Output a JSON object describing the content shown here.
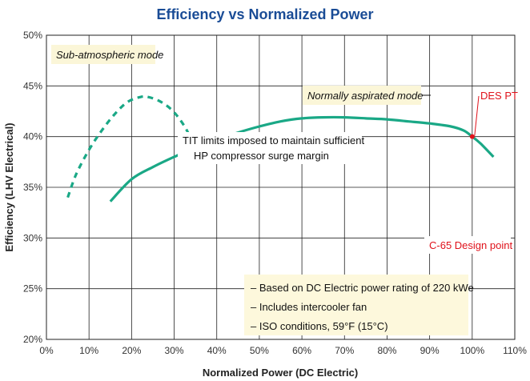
{
  "chart_data": {
    "type": "line",
    "title": "Efficiency vs Normalized Power",
    "xlabel": "Normalized Power (DC Electric)",
    "ylabel": "Efficiency (LHV Electrical)",
    "xlim": [
      0,
      110
    ],
    "ylim": [
      20,
      50
    ],
    "x_ticks": [
      0,
      10,
      20,
      30,
      40,
      50,
      60,
      70,
      80,
      90,
      100,
      110
    ],
    "x_tick_labels": [
      "0%",
      "10%",
      "20%",
      "30%",
      "40%",
      "50%",
      "60%",
      "70%",
      "80%",
      "90%",
      "100%",
      "110%"
    ],
    "y_ticks": [
      20,
      25,
      30,
      35,
      40,
      45,
      50
    ],
    "y_tick_labels": [
      "20%",
      "25%",
      "30%",
      "35%",
      "40%",
      "45%",
      "50%"
    ],
    "grid": true,
    "series": [
      {
        "name": "Sub-atmospheric mode",
        "style": "dashed",
        "color": "#1aa886",
        "x": [
          5,
          7,
          10,
          13,
          16,
          19,
          22,
          24,
          27,
          30,
          33,
          35
        ],
        "y": [
          34.0,
          36.3,
          38.7,
          40.6,
          42.2,
          43.4,
          43.9,
          43.9,
          43.4,
          42.4,
          40.6,
          38.6
        ]
      },
      {
        "name": "Normally aspirated mode",
        "style": "solid",
        "color": "#1aa886",
        "x": [
          15,
          20,
          25,
          30,
          35,
          40,
          45,
          50,
          55,
          60,
          65,
          70,
          75,
          80,
          85,
          90,
          95,
          98,
          100,
          102,
          105
        ],
        "y": [
          33.6,
          35.8,
          37.0,
          38.0,
          38.9,
          39.7,
          40.4,
          41.0,
          41.5,
          41.8,
          41.9,
          41.9,
          41.8,
          41.7,
          41.5,
          41.3,
          41.0,
          40.6,
          40.0,
          39.3,
          38.0
        ]
      }
    ],
    "points": [
      {
        "label": "C-65 Design point",
        "x": 100,
        "y": 29,
        "color": "#e0121b",
        "marker": "square"
      },
      {
        "label": "DES PT",
        "x": 100,
        "y": 40,
        "color": "#e0121b",
        "marker": "circle"
      }
    ],
    "annotations": [
      {
        "text": "Sub-atmospheric mode",
        "style": "italic",
        "boxed": true
      },
      {
        "text": "Normally aspirated mode",
        "style": "italic",
        "boxed": true
      },
      {
        "text": "TIT limits imposed to maintain sufficient",
        "style": "normal"
      },
      {
        "text": "HP compressor surge margin",
        "style": "normal"
      }
    ],
    "notes": [
      "– Based on DC Electric power rating of 220 kWe",
      "– Includes intercooler fan",
      "– ISO conditions, 59°F (15°C)"
    ],
    "colors": {
      "title": "#1a4c96",
      "curve": "#1aa886",
      "highlight": "#e0121b",
      "note_box_bg": "#fdf8dc",
      "annotation_box_bg": "#fbf6d8",
      "grid": "#222222"
    }
  }
}
